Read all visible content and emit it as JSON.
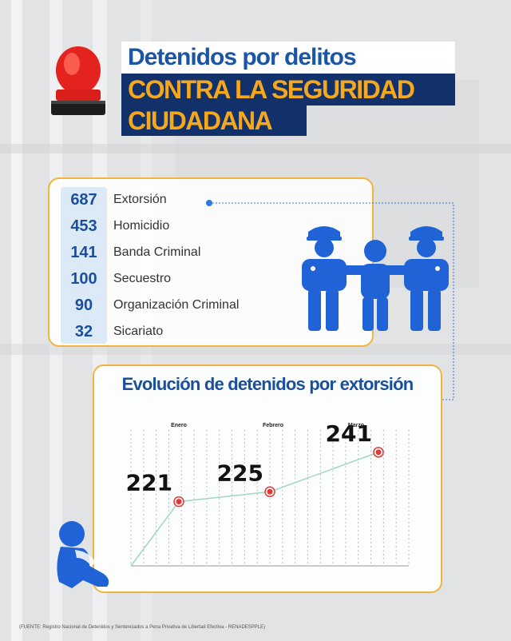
{
  "title": {
    "line1": "Detenidos por delitos",
    "line2": "CONTRA LA SEGURIDAD",
    "line3": "CIUDADANA"
  },
  "crimes": [
    {
      "value": "687",
      "label": "Extorsión"
    },
    {
      "value": "453",
      "label": "Homicidio"
    },
    {
      "value": "141",
      "label": "Banda Criminal"
    },
    {
      "value": "100",
      "label": "Secuestro"
    },
    {
      "value": "90",
      "label": "Organización Criminal"
    },
    {
      "value": "32",
      "label": "Sicariato"
    }
  ],
  "chart_data": {
    "type": "line",
    "title": "Evolución de detenidos por extorsión",
    "categories": [
      "Enero",
      "Febrero",
      "Marzo"
    ],
    "values": [
      221,
      225,
      241
    ],
    "data_labels": [
      "221",
      "225",
      "241"
    ],
    "grid": true,
    "line_color": "#9fd6c6",
    "marker_color": "#e53935"
  },
  "source": "(FUENTE: Registro Nacional de Detenidos y Sentenciados a Pena Privativa de Libertad Efectiva - RENADESPPLE)",
  "colors": {
    "accent_orange": "#f5a81c",
    "navy": "#12306a",
    "blue": "#1a4f9c",
    "panel_border": "#f2b43c"
  },
  "icons": [
    "siren-icon",
    "police-arrest-icon",
    "sad-person-icon"
  ]
}
